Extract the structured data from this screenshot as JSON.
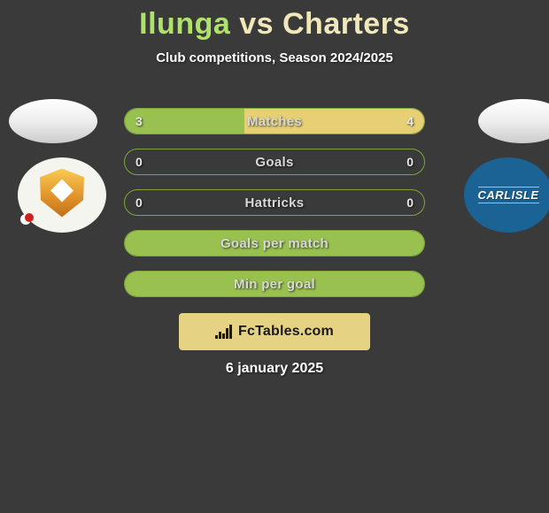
{
  "title": {
    "player1": "Ilunga",
    "vs": "vs",
    "player2": "Charters",
    "p1_color": "#aee26a",
    "vs_color": "#f0e8b8",
    "p2_color": "#f0e8b8"
  },
  "subtitle": "Club competitions, Season 2024/2025",
  "clubs": {
    "left": {
      "name": "milton-keynes-dons",
      "background": "#f5f5f0"
    },
    "right": {
      "name": "carlisle",
      "label": "CARLISLE",
      "background": "#1a6394"
    }
  },
  "bars": {
    "border_color": "#7fa53a",
    "left_fill_color": "#99c150",
    "right_fill_color": "#e6cf74",
    "rows": [
      {
        "label": "Matches",
        "left_val": "3",
        "right_val": "4",
        "left_pct": 40,
        "right_pct": 60
      },
      {
        "label": "Goals",
        "left_val": "0",
        "right_val": "0",
        "left_pct": 0,
        "right_pct": 0
      },
      {
        "label": "Hattricks",
        "left_val": "0",
        "right_val": "0",
        "left_pct": 0,
        "right_pct": 0
      },
      {
        "label": "Goals per match",
        "left_val": "",
        "right_val": "",
        "left_pct": 100,
        "right_pct": 0
      },
      {
        "label": "Min per goal",
        "left_val": "",
        "right_val": "",
        "left_pct": 100,
        "right_pct": 0
      }
    ]
  },
  "footer": {
    "brand": "FcTables.com",
    "badge_bg": "#e5d383",
    "chart_bars": [
      4,
      8,
      6,
      12,
      16
    ]
  },
  "date": "6 january 2025",
  "colors": {
    "page_bg": "#3a3a3a",
    "text_light": "#ffffff"
  }
}
